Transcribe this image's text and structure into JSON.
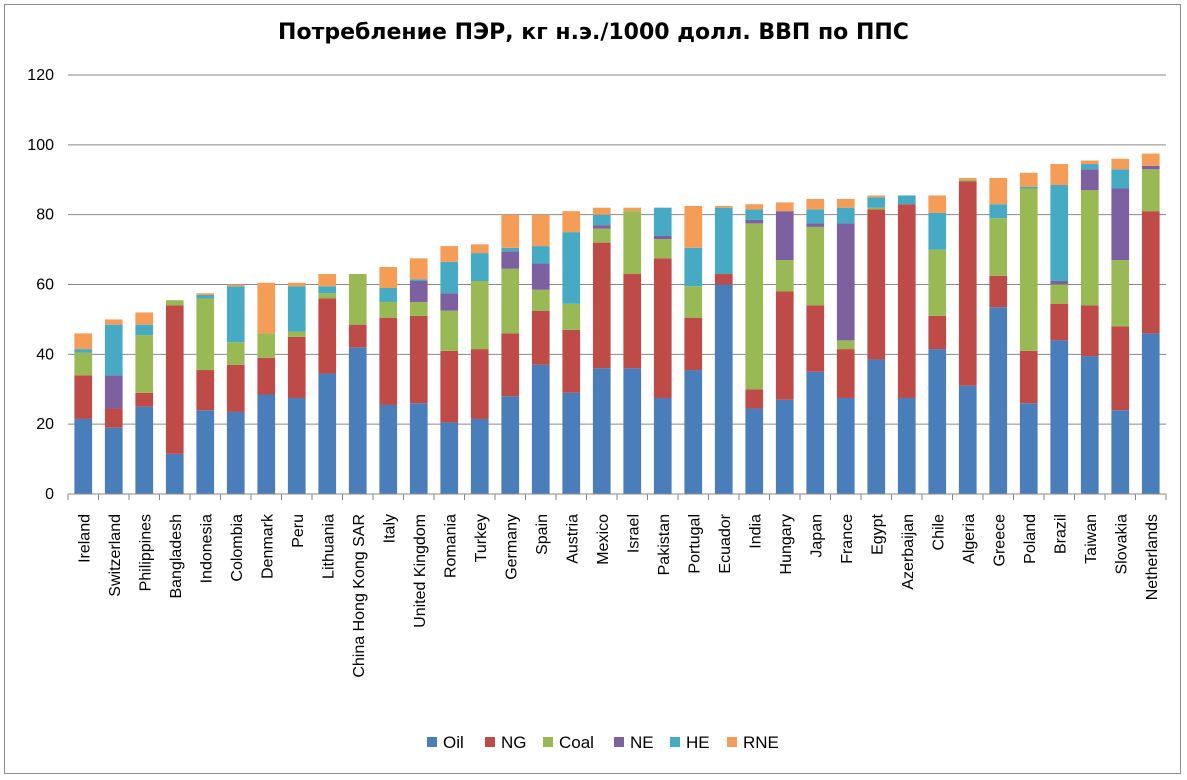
{
  "chart_data": {
    "type": "bar",
    "stacked": true,
    "title": "Потребление ПЭР, кг н.э./1000 долл. ВВП по ППС",
    "ylim": [
      0,
      120
    ],
    "yticks": [
      0,
      20,
      40,
      60,
      80,
      100,
      120
    ],
    "grid": true,
    "legend_position": "bottom",
    "categories": [
      "Ireland",
      "Switzerland",
      "Philippines",
      "Bangladesh",
      "Indonesia",
      "Colombia",
      "Denmark",
      "Peru",
      "Lithuania",
      "China Hong Kong SAR",
      "Italy",
      "United Kingdom",
      "Romania",
      "Turkey",
      "Germany",
      "Spain",
      "Austria",
      "Mexico",
      "Israel",
      "Pakistan",
      "Portugal",
      "Ecuador",
      "India",
      "Hungary",
      "Japan",
      "France",
      "Egypt",
      "Azerbaijan",
      "Chile",
      "Algeria",
      "Greece",
      "Poland",
      "Brazil",
      "Taiwan",
      "Slovakia",
      "Netherlands"
    ],
    "series": [
      {
        "name": "Oil",
        "color": "#4a7ebb",
        "values": [
          21.5,
          19,
          25,
          11.5,
          24,
          23.5,
          28.5,
          27.5,
          34.5,
          42,
          25.5,
          26,
          20.5,
          21.5,
          28,
          37,
          29,
          36,
          36,
          27.5,
          35.5,
          60,
          24.5,
          27,
          35,
          27.5,
          38.5,
          27.5,
          41.5,
          31,
          53.5,
          26,
          44,
          39.5,
          24,
          46
        ]
      },
      {
        "name": "NG",
        "color": "#be4b48",
        "values": [
          12.5,
          5.5,
          4,
          42.5,
          11.5,
          13.5,
          10.5,
          17.5,
          21.5,
          6.5,
          25,
          25,
          20.5,
          20,
          18,
          15.5,
          18,
          36,
          27,
          40,
          15,
          3,
          5.5,
          31,
          19,
          14,
          43,
          55.5,
          9.5,
          58.5,
          9,
          15,
          10.5,
          14.5,
          24,
          35
        ]
      },
      {
        "name": "Coal",
        "color": "#98b954",
        "values": [
          6.5,
          0,
          16.5,
          1.5,
          20.5,
          6.5,
          7,
          1.5,
          1.5,
          14.5,
          4.5,
          4,
          11.5,
          19.5,
          18.5,
          6,
          7.5,
          4,
          18,
          5.5,
          9,
          0,
          47.5,
          9,
          22.5,
          2.5,
          0.5,
          0,
          19,
          0.5,
          16.5,
          46.5,
          5.5,
          33,
          19,
          12
        ]
      },
      {
        "name": "NE",
        "color": "#7d60a0",
        "values": [
          0,
          9.5,
          0,
          0,
          0,
          0,
          0,
          0,
          0,
          0,
          0,
          6,
          5,
          0,
          5,
          7.5,
          0,
          1,
          0,
          1,
          0,
          0,
          1,
          14,
          1,
          33.5,
          0,
          0,
          0,
          0,
          0,
          0,
          1,
          6,
          20.5,
          1
        ]
      },
      {
        "name": "HE",
        "color": "#46aac5",
        "values": [
          1,
          14.5,
          3,
          0,
          1,
          16,
          0,
          13,
          2,
          0,
          4,
          0.5,
          9,
          8,
          1,
          5,
          20.5,
          3,
          0,
          8,
          11,
          19,
          3,
          0,
          4,
          4.5,
          3,
          2.5,
          10.5,
          0,
          4,
          0.5,
          27.5,
          1.5,
          5.5,
          0
        ]
      },
      {
        "name": "RNE",
        "color": "#f59d56",
        "values": [
          4.5,
          1.5,
          3.5,
          0,
          0.5,
          0.5,
          14.5,
          1,
          3.5,
          0,
          6,
          6,
          4.5,
          2.5,
          9.5,
          9,
          6,
          2,
          1,
          0,
          12,
          0.5,
          1.5,
          2.5,
          3,
          2.5,
          0.5,
          0,
          5,
          0.5,
          7.5,
          4,
          6,
          1,
          3,
          3.5
        ]
      }
    ]
  }
}
